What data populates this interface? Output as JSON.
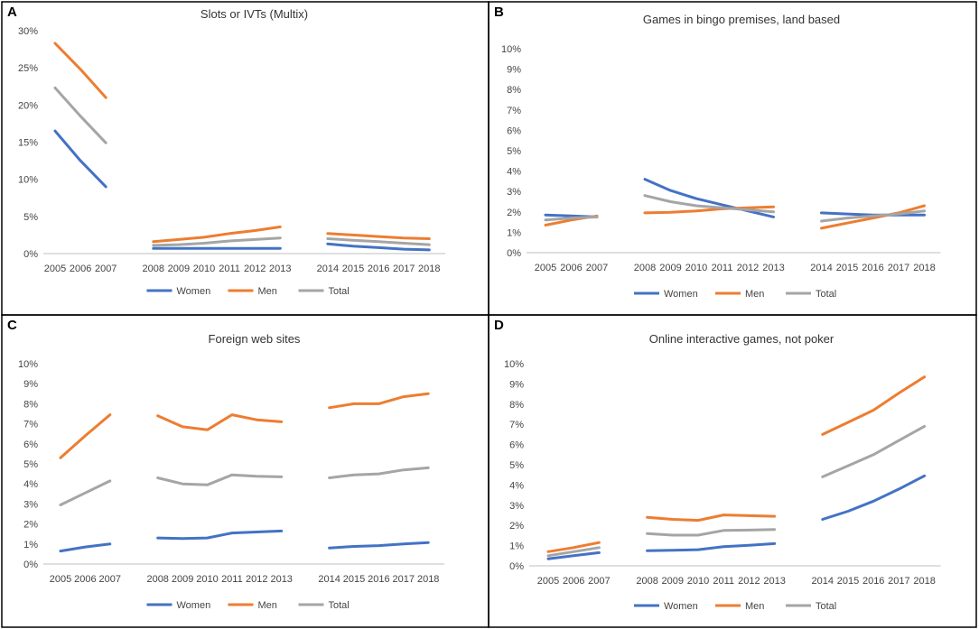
{
  "legend": [
    "Women",
    "Men",
    "Total"
  ],
  "colors": {
    "Women": "#4472C4",
    "Men": "#ED7D31",
    "Total": "#A5A5A5"
  },
  "chart_data": [
    {
      "panel": "A",
      "type": "line",
      "title": "Slots or IVTs (Multix)",
      "ylim": [
        0,
        30
      ],
      "yticks": [
        0,
        5,
        10,
        15,
        20,
        25,
        30
      ],
      "ytick_labels": [
        "0%",
        "5%",
        "10%",
        "15%",
        "20%",
        "25%",
        "30%"
      ],
      "x": [
        "2005",
        "2006",
        "2007",
        "2008",
        "2009",
        "2010",
        "2011",
        "2012",
        "2013",
        "2014",
        "2015",
        "2016",
        "2017",
        "2018"
      ],
      "segments": [
        [
          0,
          2
        ],
        [
          3,
          8
        ],
        [
          9,
          13
        ]
      ],
      "series": [
        {
          "name": "Women",
          "values": [
            16.5,
            12.5,
            9.0,
            0.7,
            0.7,
            0.7,
            0.7,
            0.7,
            0.7,
            1.3,
            1.0,
            0.8,
            0.6,
            0.5
          ]
        },
        {
          "name": "Men",
          "values": [
            28.3,
            24.8,
            21.0,
            1.6,
            1.9,
            2.2,
            2.7,
            3.1,
            3.6,
            2.7,
            2.5,
            2.3,
            2.1,
            2.0
          ]
        },
        {
          "name": "Total",
          "values": [
            22.3,
            18.5,
            14.9,
            1.1,
            1.2,
            1.4,
            1.7,
            1.9,
            2.1,
            2.0,
            1.8,
            1.6,
            1.4,
            1.2
          ]
        }
      ]
    },
    {
      "panel": "B",
      "type": "line",
      "title": "Games in bingo premises, land based",
      "ylim": [
        0,
        10
      ],
      "yticks": [
        0,
        1,
        2,
        3,
        4,
        5,
        6,
        7,
        8,
        9,
        10
      ],
      "ytick_labels": [
        "0%",
        "1%",
        "2%",
        "3%",
        "4%",
        "5%",
        "6%",
        "7%",
        "8%",
        "9%",
        "10%"
      ],
      "x": [
        "2005",
        "2006",
        "2007",
        "2008",
        "2009",
        "2010",
        "2011",
        "2012",
        "2013",
        "2014",
        "2015",
        "2016",
        "2017",
        "2018"
      ],
      "segments": [
        [
          0,
          2
        ],
        [
          3,
          8
        ],
        [
          9,
          13
        ]
      ],
      "series": [
        {
          "name": "Women",
          "values": [
            1.85,
            1.8,
            1.75,
            3.6,
            3.05,
            2.65,
            2.35,
            2.05,
            1.75,
            1.95,
            1.9,
            1.85,
            1.85,
            1.85
          ]
        },
        {
          "name": "Men",
          "values": [
            1.35,
            1.6,
            1.8,
            1.95,
            1.98,
            2.05,
            2.15,
            2.2,
            2.25,
            1.2,
            1.45,
            1.7,
            1.95,
            2.3
          ]
        },
        {
          "name": "Total",
          "values": [
            1.6,
            1.7,
            1.75,
            2.8,
            2.5,
            2.3,
            2.2,
            2.1,
            2.0,
            1.55,
            1.7,
            1.8,
            1.9,
            2.05
          ]
        }
      ]
    },
    {
      "panel": "C",
      "type": "line",
      "title": "Foreign web sites",
      "ylim": [
        0,
        10
      ],
      "yticks": [
        0,
        1,
        2,
        3,
        4,
        5,
        6,
        7,
        8,
        9,
        10
      ],
      "ytick_labels": [
        "0%",
        "1%",
        "2%",
        "3%",
        "4%",
        "5%",
        "6%",
        "7%",
        "8%",
        "9%",
        "10%"
      ],
      "x": [
        "2005",
        "2006",
        "2007",
        "2008",
        "2009",
        "2010",
        "2011",
        "2012",
        "2013",
        "2014",
        "2015",
        "2016",
        "2017",
        "2018"
      ],
      "segments": [
        [
          0,
          2
        ],
        [
          3,
          8
        ],
        [
          9,
          13
        ]
      ],
      "series": [
        {
          "name": "Women",
          "values": [
            0.65,
            0.85,
            1.0,
            1.3,
            1.27,
            1.3,
            1.55,
            1.6,
            1.65,
            0.8,
            0.88,
            0.92,
            1.0,
            1.07
          ]
        },
        {
          "name": "Men",
          "values": [
            5.3,
            6.4,
            7.45,
            7.4,
            6.85,
            6.7,
            7.45,
            7.2,
            7.1,
            7.8,
            8.0,
            8.0,
            8.35,
            8.5
          ]
        },
        {
          "name": "Total",
          "values": [
            2.95,
            3.55,
            4.15,
            4.3,
            4.0,
            3.95,
            4.45,
            4.38,
            4.35,
            4.3,
            4.45,
            4.5,
            4.7,
            4.8
          ]
        }
      ]
    },
    {
      "panel": "D",
      "type": "line",
      "title": "Online interactive games, not poker",
      "ylim": [
        0,
        10
      ],
      "yticks": [
        0,
        1,
        2,
        3,
        4,
        5,
        6,
        7,
        8,
        9,
        10
      ],
      "ytick_labels": [
        "0%",
        "1%",
        "2%",
        "3%",
        "4%",
        "5%",
        "6%",
        "7%",
        "8%",
        "9%",
        "10%"
      ],
      "x": [
        "2005",
        "2006",
        "2007",
        "2008",
        "2009",
        "2010",
        "2011",
        "2012",
        "2013",
        "2014",
        "2015",
        "2016",
        "2017",
        "2018"
      ],
      "segments": [
        [
          0,
          2
        ],
        [
          3,
          8
        ],
        [
          9,
          13
        ]
      ],
      "series": [
        {
          "name": "Women",
          "values": [
            0.35,
            0.5,
            0.65,
            0.75,
            0.77,
            0.8,
            0.95,
            1.02,
            1.1,
            2.3,
            2.7,
            3.2,
            3.8,
            4.45
          ]
        },
        {
          "name": "Men",
          "values": [
            0.7,
            0.9,
            1.15,
            2.4,
            2.3,
            2.25,
            2.52,
            2.48,
            2.45,
            6.5,
            7.1,
            7.7,
            8.55,
            9.35
          ]
        },
        {
          "name": "Total",
          "values": [
            0.5,
            0.7,
            0.9,
            1.6,
            1.52,
            1.52,
            1.75,
            1.77,
            1.8,
            4.4,
            4.95,
            5.5,
            6.2,
            6.9
          ]
        }
      ]
    }
  ]
}
